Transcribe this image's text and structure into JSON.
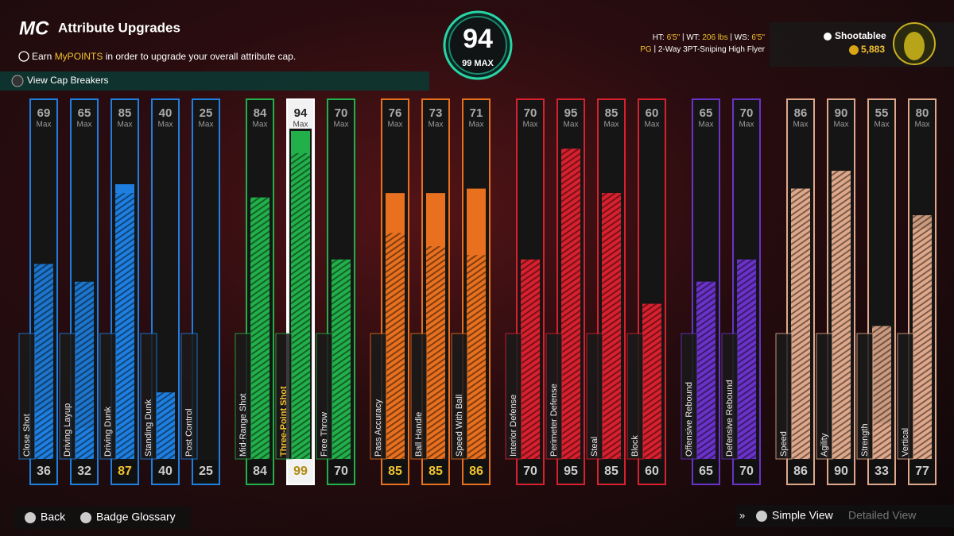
{
  "header": {
    "logo": "MC",
    "title": "Attribute Upgrades",
    "info_prefix": "Earn ",
    "info_highlight": "MyPOINTS",
    "info_suffix": " in order to upgrade your overall attribute cap.",
    "cap_breakers": "View Cap Breakers"
  },
  "overall": {
    "value": 94,
    "cap_label": "99 MAX"
  },
  "player": {
    "ht_label": "HT:",
    "ht": "6'5\"",
    "wt_label": "WT:",
    "wt": "206 lbs",
    "ws_label": "WS:",
    "ws": "6'5\"",
    "position": "PG",
    "build": "2-Way 3PT-Sniping High Flyer",
    "name": "Shootablee",
    "vc": "5,883"
  },
  "max_label": "Max",
  "groups": [
    {
      "color": "#1e7fe0",
      "attributes": [
        {
          "name": "Close Shot",
          "max": 69,
          "current": 36
        },
        {
          "name": "Driving Layup",
          "max": 65,
          "current": 32
        },
        {
          "name": "Driving Dunk",
          "max": 85,
          "current": 87
        },
        {
          "name": "Standing Dunk",
          "max": 40,
          "current": 40
        },
        {
          "name": "Post Control",
          "max": 25,
          "current": 25
        }
      ]
    },
    {
      "color": "#22b04a",
      "attributes": [
        {
          "name": "Mid-Range Shot",
          "max": 84,
          "current": 84
        },
        {
          "name": "Three-Point Shot",
          "max": 94,
          "current": 99,
          "selected": true
        },
        {
          "name": "Free Throw",
          "max": 70,
          "current": 70
        }
      ]
    },
    {
      "color": "#e8701e",
      "attributes": [
        {
          "name": "Pass Accuracy",
          "max": 76,
          "current": 85
        },
        {
          "name": "Ball Handle",
          "max": 73,
          "current": 85
        },
        {
          "name": "Speed With Ball",
          "max": 71,
          "current": 86
        }
      ]
    },
    {
      "color": "#d8202e",
      "attributes": [
        {
          "name": "Interior Defense",
          "max": 70,
          "current": 70
        },
        {
          "name": "Perimeter Defense",
          "max": 95,
          "current": 95
        },
        {
          "name": "Steal",
          "max": 85,
          "current": 85
        },
        {
          "name": "Block",
          "max": 60,
          "current": 60
        }
      ]
    },
    {
      "color": "#6a32c8",
      "attributes": [
        {
          "name": "Offensive Rebound",
          "max": 65,
          "current": 65
        },
        {
          "name": "Defensive Rebound",
          "max": 70,
          "current": 70
        }
      ]
    },
    {
      "color": "#e0a88a",
      "attributes": [
        {
          "name": "Speed",
          "max": 86,
          "current": 86
        },
        {
          "name": "Agility",
          "max": 90,
          "current": 90
        },
        {
          "name": "Strength",
          "max": 55,
          "current": 33
        },
        {
          "name": "Vertical",
          "max": 80,
          "current": 77
        }
      ]
    }
  ],
  "footer": {
    "back": "Back",
    "glossary": "Badge Glossary",
    "simple_view": "Simple View",
    "detailed_view": "Detailed View"
  }
}
